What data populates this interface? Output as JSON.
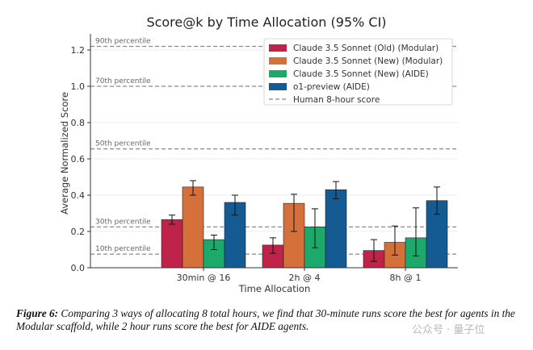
{
  "chart_data": {
    "type": "bar",
    "title": "Score@k by Time Allocation (95% CI)",
    "xlabel": "Time Allocation",
    "ylabel": "Average Normalized Score",
    "ylim": [
      0,
      1.28
    ],
    "yticks": [
      "0.0",
      "0.2",
      "0.4",
      "0.6",
      "0.8",
      "1.0",
      "1.2"
    ],
    "grid": "horizontal",
    "legend_position": "top-right",
    "categories": [
      "30min @ 16",
      "2h @ 4",
      "8h @ 1"
    ],
    "series": [
      {
        "name": "Claude 3.5 Sonnet (Old) (Modular)",
        "color": "#c0234a",
        "values": [
          0.265,
          0.125,
          0.095
        ],
        "ci_low": [
          0.24,
          0.08,
          0.035
        ],
        "ci_high": [
          0.29,
          0.165,
          0.155
        ]
      },
      {
        "name": "Claude 3.5 Sonnet (New) (Modular)",
        "color": "#d6703a",
        "values": [
          0.445,
          0.355,
          0.14
        ],
        "ci_low": [
          0.4,
          0.2,
          0.07
        ],
        "ci_high": [
          0.48,
          0.405,
          0.23
        ]
      },
      {
        "name": "Claude 3.5 Sonnet (New) (AIDE)",
        "color": "#1ea96c",
        "values": [
          0.155,
          0.225,
          0.165
        ],
        "ci_low": [
          0.1,
          0.11,
          0.065
        ],
        "ci_high": [
          0.18,
          0.325,
          0.33
        ]
      },
      {
        "name": "o1-preview (AIDE)",
        "color": "#135b92",
        "values": [
          0.36,
          0.43,
          0.37
        ],
        "ci_low": [
          0.29,
          0.38,
          0.295
        ],
        "ci_high": [
          0.4,
          0.475,
          0.445
        ]
      }
    ],
    "reference_lines": {
      "legend_label": "Human 8-hour score",
      "lines": [
        {
          "label": "90th percentile",
          "value": 1.22
        },
        {
          "label": "70th percentile",
          "value": 1.0
        },
        {
          "label": "50th percentile",
          "value": 0.655
        },
        {
          "label": "30th percentile",
          "value": 0.225
        },
        {
          "label": "10th percentile",
          "value": 0.075
        }
      ]
    }
  },
  "caption": {
    "label": "Figure 6:",
    "text": "Comparing 3 ways of allocating 8 total hours, we find that 30-minute runs score the best for agents in the Modular scaffold, while 2 hour runs score the best for AIDE agents."
  },
  "watermark": "公众号 · 量子位"
}
